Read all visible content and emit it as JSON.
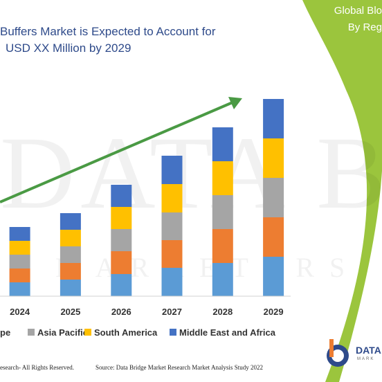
{
  "title_lines": [
    "Buffers Market is Expected to Account for",
    "USD XX Million by 2029"
  ],
  "side_panel": {
    "lines": [
      "Global Blo",
      "By Reg"
    ]
  },
  "footer": {
    "left": "esearch- All Rights Reserved.",
    "right": "Source: Data Bridge Market Research Market Analysis Study 2022"
  },
  "brand": {
    "name": "DATA",
    "sub": "MARK"
  },
  "watermark": {
    "text": "DATA BRI",
    "sub": "MARKETERS"
  },
  "colors": {
    "north_america": "#5b9bd5",
    "europe": "#ed7d31",
    "asia_pacific": "#a5a5a5",
    "south_america": "#ffc000",
    "middle_east_africa": "#4472c4",
    "arrow": "#4a9a44",
    "panel": "#9bc53d",
    "title": "#2e4a8a"
  },
  "chart_data": {
    "type": "bar",
    "stacked": true,
    "categories": [
      "2024",
      "2025",
      "2026",
      "2027",
      "2028",
      "2029"
    ],
    "series": [
      {
        "name": "",
        "color": "#5b9bd5",
        "values": [
          20,
          24,
          32,
          41,
          48,
          57
        ]
      },
      {
        "name": "pe",
        "color": "#ed7d31",
        "values": [
          20,
          24,
          33,
          40,
          49,
          57
        ]
      },
      {
        "name": "Asia Pacific",
        "color": "#a5a5a5",
        "values": [
          20,
          24,
          32,
          40,
          49,
          57
        ]
      },
      {
        "name": "South America",
        "color": "#ffc000",
        "values": [
          20,
          24,
          32,
          41,
          49,
          57
        ]
      },
      {
        "name": "Middle East and Africa",
        "color": "#4472c4",
        "values": [
          20,
          24,
          32,
          41,
          49,
          57
        ]
      }
    ],
    "legend": [
      "pe",
      "Asia Pacific",
      "South America",
      "Middle East and Africa"
    ],
    "ylim": [
      0,
      290
    ],
    "trend_arrow": true,
    "legend_position": "bottom"
  }
}
